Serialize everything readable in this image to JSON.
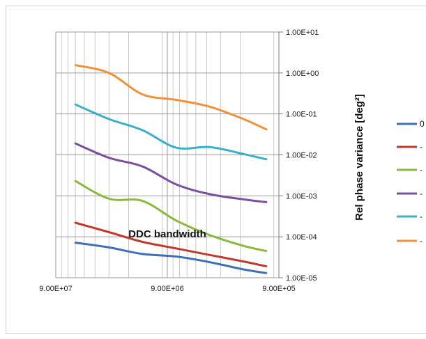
{
  "chart_data": {
    "type": "line",
    "xlabel": "DDC bandwidth",
    "ylabel": "Rel phase variance [deg²]",
    "xscale": "log",
    "x_axis_reversed": true,
    "yscale": "log",
    "grid": true,
    "legend_position": "right",
    "xlim": [
      90000000,
      900000
    ],
    "ylim": [
      1e-05,
      10
    ],
    "x_tick_labels": [
      "9.00E+07",
      "9.00E+06",
      "9.00E+05"
    ],
    "y_tick_labels": [
      "1.00E+01",
      "1.00E+00",
      "1.00E-01",
      "1.00E-02",
      "1.00E-03",
      "1.00E-04",
      "1.00E-05"
    ],
    "x": [
      60000000,
      30000000,
      15000000,
      7500000,
      3750000,
      1870000,
      1170000
    ],
    "series": [
      {
        "name": "0",
        "color": "#3f6fb5",
        "values": [
          7.2e-05,
          5.5e-05,
          3.8e-05,
          3.3e-05,
          2.4e-05,
          1.6e-05,
          1.3e-05
        ]
      },
      {
        "name": "-",
        "color": "#c0392b",
        "values": [
          0.00022,
          0.00013,
          7.5e-05,
          5.2e-05,
          3.6e-05,
          2.5e-05,
          1.9e-05
        ]
      },
      {
        "name": "-",
        "color": "#8bb93d",
        "values": [
          0.0023,
          0.00085,
          0.00075,
          0.00025,
          0.00011,
          6e-05,
          4.5e-05
        ]
      },
      {
        "name": "-",
        "color": "#7b4fa0",
        "values": [
          0.019,
          0.0085,
          0.0052,
          0.0019,
          0.0011,
          0.00082,
          0.0007
        ]
      },
      {
        "name": "-",
        "color": "#3ab0c9",
        "values": [
          0.17,
          0.075,
          0.04,
          0.015,
          0.0155,
          0.0105,
          0.0078
        ]
      },
      {
        "name": "-",
        "color": "#f0913a",
        "values": [
          1.55,
          1.0,
          0.3,
          0.22,
          0.15,
          0.075,
          0.042
        ]
      }
    ]
  }
}
